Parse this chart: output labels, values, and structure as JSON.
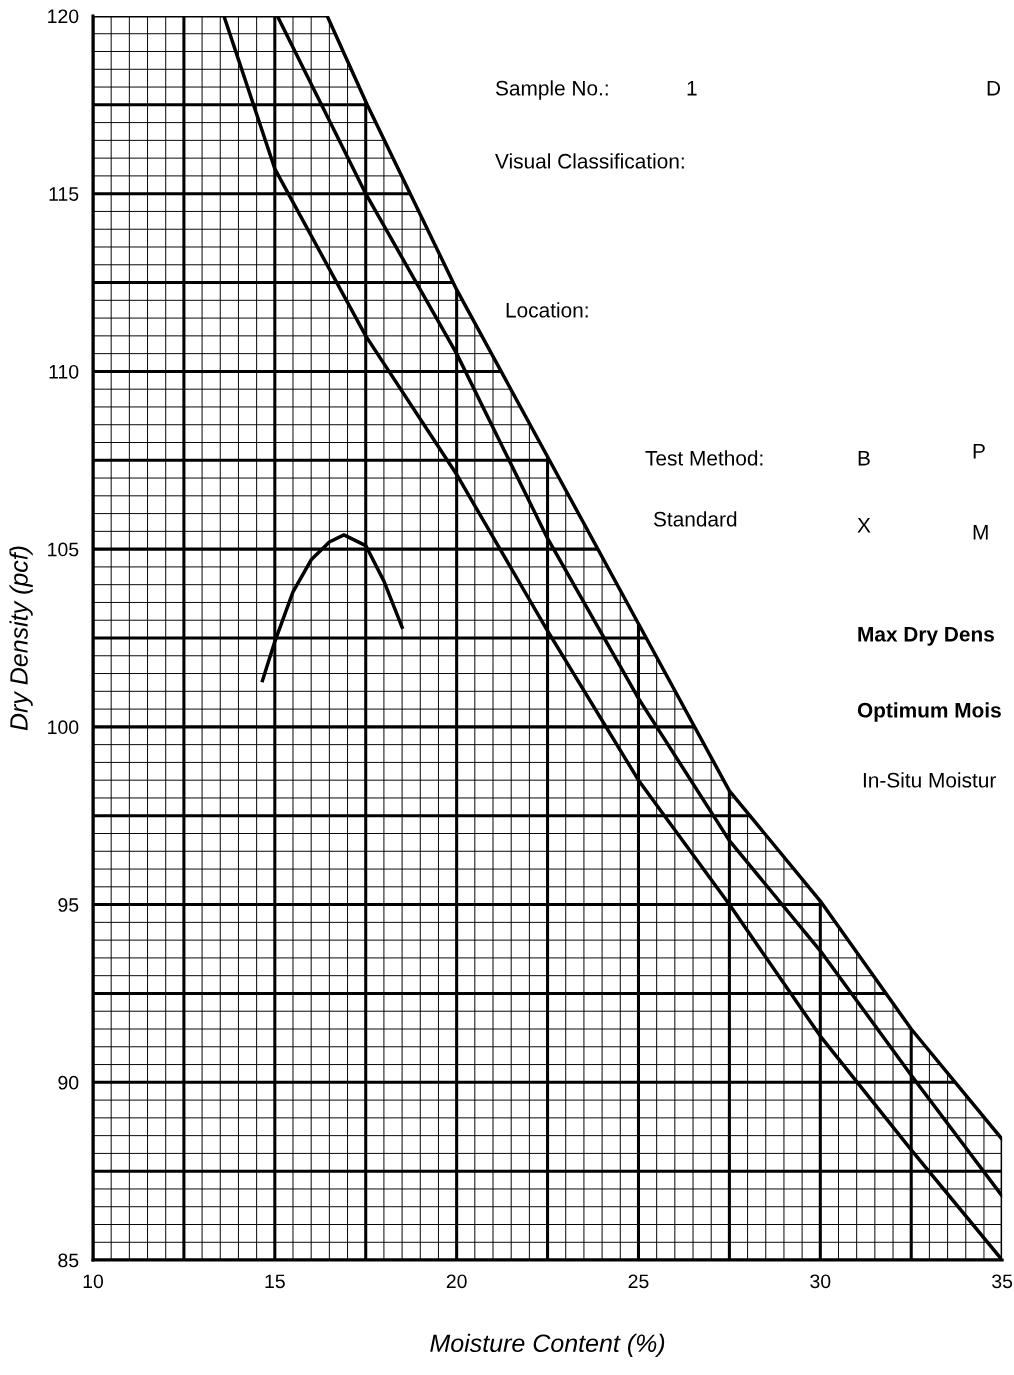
{
  "chart_data": {
    "type": "line",
    "xlabel": "Moisture Content (%)",
    "ylabel": "Dry Density (pcf)",
    "xlim": [
      10,
      35
    ],
    "ylim": [
      85,
      120
    ],
    "xticks": [
      10,
      {
        "value": 12.5,
        "label": null
      },
      15,
      {
        "value": 17.5,
        "label": null
      },
      20,
      {
        "value": 22.5,
        "label": null
      },
      25,
      {
        "value": 27.5,
        "label": null
      },
      30,
      {
        "value": 32.5,
        "label": null
      },
      35
    ],
    "yticks": [
      85,
      {
        "value": 87.5,
        "label": null
      },
      90,
      {
        "value": 92.5,
        "label": null
      },
      95,
      {
        "value": 97.5,
        "label": null
      },
      100,
      {
        "value": 102.5,
        "label": null
      },
      105,
      {
        "value": 107.5,
        "label": null
      },
      110,
      {
        "value": 112.5,
        "label": null
      },
      115,
      {
        "value": 117.5,
        "label": null
      },
      120
    ],
    "grid": true,
    "marker": "none",
    "line_style": "solid",
    "series": [
      {
        "color": "#000000",
        "x": [
          16.44,
          17.54,
          20,
          22.5,
          25,
          27.5,
          30,
          32.5,
          35
        ],
        "values": [
          120,
          117.5,
          112.3,
          107.6,
          102.9,
          98.2,
          95.1,
          91.5,
          88.4
        ]
      },
      {
        "color": "#000000",
        "x": [
          15.07,
          17.5,
          20,
          22.5,
          25,
          27.5,
          30,
          32.5,
          35
        ],
        "values": [
          120,
          115,
          110.5,
          105.3,
          100.8,
          96.8,
          93.7,
          90.2,
          86.8
        ]
      },
      {
        "color": "#000000",
        "x": [
          13.6,
          15,
          17.5,
          20,
          22.5,
          25,
          27.5,
          30,
          32.5,
          35
        ],
        "values": [
          120,
          115.7,
          111,
          107.1,
          102.7,
          98.5,
          95,
          91.3,
          88.1,
          85
        ]
      },
      {
        "color": "#000000",
        "x": [
          14.66,
          15,
          15.5,
          16,
          16.5,
          16.9,
          17.5,
          18,
          18.5
        ],
        "values": [
          101.3,
          102.4,
          103.8,
          104.7,
          105.2,
          105.4,
          105.1,
          104.1,
          102.8
        ]
      }
    ],
    "annotations": [
      "Sample No.:",
      "1",
      "D",
      "Visual Classification:",
      "Location:",
      "Test Method:",
      "B",
      "P",
      "Standard",
      "X",
      "M",
      "Max Dry Dens",
      "Optimum Mois",
      "In-Situ Moistur"
    ]
  }
}
